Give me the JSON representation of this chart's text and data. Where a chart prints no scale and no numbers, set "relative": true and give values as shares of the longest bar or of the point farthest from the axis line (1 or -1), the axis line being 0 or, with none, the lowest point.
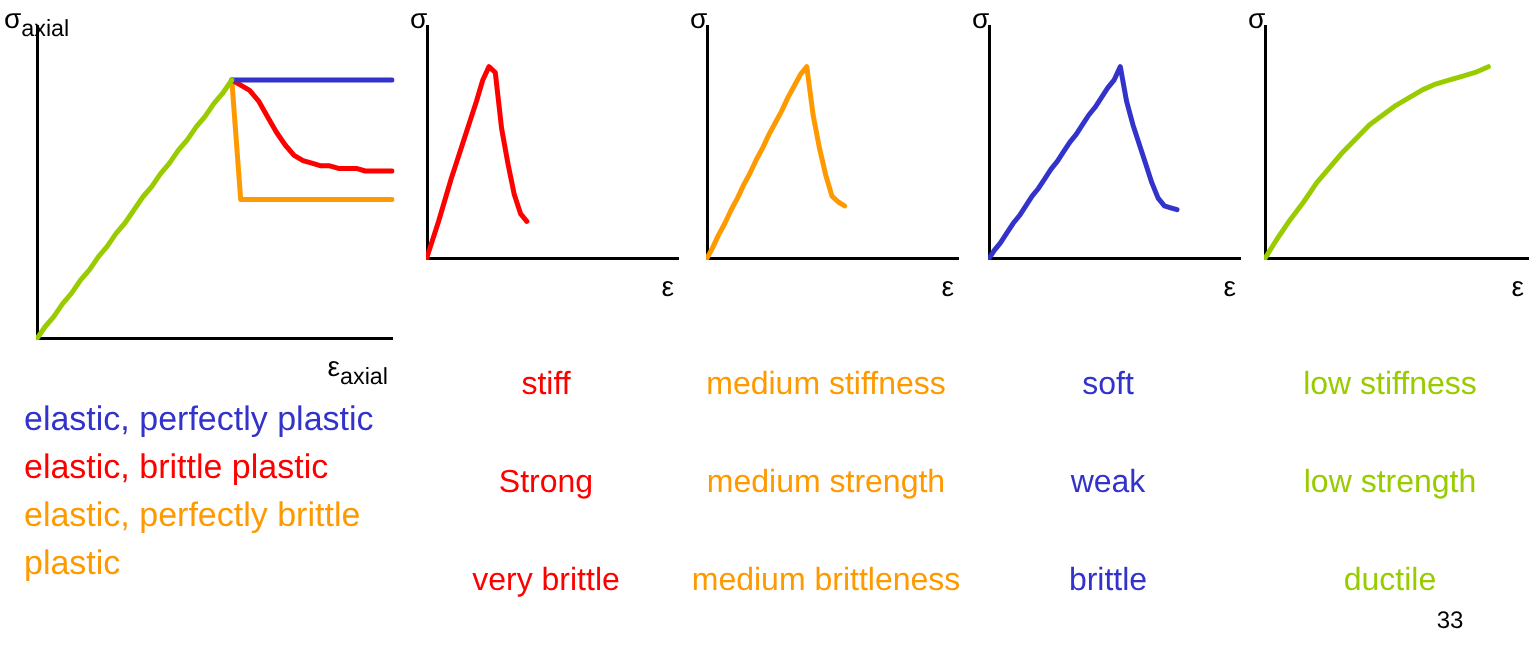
{
  "chart_data": [
    {
      "type": "line",
      "relative": true,
      "xlabel": "ε$_{axial}$",
      "ylabel": "σ$_{axial}$",
      "marker": "none",
      "line_style": "solid",
      "categories": [
        null,
        null,
        null,
        null,
        null,
        null,
        null,
        null,
        null,
        null,
        null,
        null,
        null,
        null,
        null,
        null,
        null,
        null,
        null,
        null,
        null,
        null,
        null,
        null,
        null,
        null,
        null,
        null,
        null,
        null,
        null,
        null,
        null,
        null,
        null,
        null,
        null,
        null,
        null,
        null,
        null
      ],
      "series": [
        {
          "color": "#99cc00",
          "values": [
            0,
            0.05,
            0.09,
            0.14,
            0.18,
            0.23,
            0.27,
            0.32,
            0.36,
            0.41,
            0.45,
            0.5,
            0.55,
            0.59,
            0.64,
            0.68,
            0.73,
            0.77,
            0.82,
            0.86,
            0.91,
            0.95,
            1,
            null,
            null,
            null,
            null,
            null,
            null,
            null,
            null,
            null,
            null,
            null,
            null,
            null,
            null,
            null,
            null,
            null,
            null
          ]
        },
        {
          "name": "elastic, perfectly plastic",
          "color": "#3333cc",
          "values": [
            null,
            null,
            null,
            null,
            null,
            null,
            null,
            null,
            null,
            null,
            null,
            null,
            null,
            null,
            null,
            null,
            null,
            null,
            null,
            null,
            null,
            null,
            1,
            1,
            1,
            1,
            1,
            1,
            1,
            1,
            1,
            1,
            1,
            1,
            1,
            1,
            1,
            1,
            1,
            1,
            1
          ]
        },
        {
          "name": "elastic, brittle plastic",
          "color": "#ff0000",
          "values": [
            null,
            null,
            null,
            null,
            null,
            null,
            null,
            null,
            null,
            null,
            null,
            null,
            null,
            null,
            null,
            null,
            null,
            null,
            null,
            null,
            null,
            null,
            1,
            0.98,
            0.96,
            0.92,
            0.86,
            0.8,
            0.75,
            0.71,
            0.69,
            0.68,
            0.67,
            0.67,
            0.66,
            0.66,
            0.66,
            0.65,
            0.65,
            0.65,
            0.65
          ]
        },
        {
          "name": "elastic, perfectly brittle plastic",
          "color": "#ff9900",
          "values": [
            null,
            null,
            null,
            null,
            null,
            null,
            null,
            null,
            null,
            null,
            null,
            null,
            null,
            null,
            null,
            null,
            null,
            null,
            null,
            null,
            null,
            null,
            1,
            0.54,
            0.54,
            0.54,
            0.54,
            0.54,
            0.54,
            0.54,
            0.54,
            0.54,
            0.54,
            0.54,
            0.54,
            0.54,
            0.54,
            0.54,
            0.54,
            0.54,
            0.54
          ]
        }
      ]
    },
    {
      "type": "line",
      "relative": true,
      "xlabel": "ε",
      "ylabel": "σ",
      "marker": "none",
      "line_style": "solid",
      "annotations": [
        "stiff",
        "Strong",
        "very brittle"
      ],
      "categories": [
        null,
        null,
        null,
        null,
        null,
        null,
        null,
        null,
        null,
        null,
        null,
        null,
        null,
        null,
        null,
        null,
        null,
        null,
        null,
        null,
        null,
        null,
        null,
        null,
        null,
        null,
        null,
        null,
        null,
        null,
        null,
        null,
        null,
        null,
        null,
        null,
        null,
        null,
        null,
        null,
        null
      ],
      "series": [
        {
          "color": "#ff0000",
          "values": [
            0,
            0.1,
            0.2,
            0.31,
            0.42,
            0.52,
            0.62,
            0.72,
            0.82,
            0.93,
            1,
            0.97,
            0.68,
            0.5,
            0.34,
            0.24,
            0.2,
            null,
            null,
            null,
            null,
            null,
            null,
            null,
            null,
            null,
            null,
            null,
            null,
            null,
            null,
            null,
            null,
            null,
            null,
            null,
            null,
            null,
            null,
            null,
            null
          ]
        }
      ]
    },
    {
      "type": "line",
      "relative": true,
      "xlabel": "ε",
      "ylabel": "σ",
      "marker": "none",
      "line_style": "solid",
      "annotations": [
        "medium stiffness",
        "medium strength",
        "medium brittleness"
      ],
      "categories": [
        null,
        null,
        null,
        null,
        null,
        null,
        null,
        null,
        null,
        null,
        null,
        null,
        null,
        null,
        null,
        null,
        null,
        null,
        null,
        null,
        null,
        null,
        null,
        null,
        null,
        null,
        null,
        null,
        null,
        null,
        null,
        null,
        null,
        null,
        null,
        null,
        null,
        null,
        null,
        null,
        null
      ],
      "series": [
        {
          "color": "#ff9900",
          "values": [
            0,
            0.06,
            0.13,
            0.19,
            0.26,
            0.32,
            0.39,
            0.45,
            0.52,
            0.58,
            0.65,
            0.71,
            0.77,
            0.84,
            0.9,
            0.96,
            1,
            0.75,
            0.58,
            0.44,
            0.33,
            0.3,
            0.28,
            null,
            null,
            null,
            null,
            null,
            null,
            null,
            null,
            null,
            null,
            null,
            null,
            null,
            null,
            null,
            null,
            null,
            null
          ]
        }
      ]
    },
    {
      "type": "line",
      "relative": true,
      "xlabel": "ε",
      "ylabel": "σ",
      "marker": "none",
      "line_style": "solid",
      "annotations": [
        "soft",
        "weak",
        "brittle"
      ],
      "categories": [
        null,
        null,
        null,
        null,
        null,
        null,
        null,
        null,
        null,
        null,
        null,
        null,
        null,
        null,
        null,
        null,
        null,
        null,
        null,
        null,
        null,
        null,
        null,
        null,
        null,
        null,
        null,
        null,
        null,
        null,
        null,
        null,
        null,
        null,
        null,
        null,
        null,
        null,
        null,
        null,
        null
      ],
      "series": [
        {
          "color": "#3333cc",
          "values": [
            0,
            0.05,
            0.09,
            0.14,
            0.19,
            0.23,
            0.28,
            0.33,
            0.37,
            0.42,
            0.47,
            0.51,
            0.56,
            0.61,
            0.65,
            0.7,
            0.75,
            0.79,
            0.84,
            0.89,
            0.93,
            1,
            0.82,
            0.7,
            0.6,
            0.5,
            0.4,
            0.32,
            0.28,
            0.27,
            0.26,
            null,
            null,
            null,
            null,
            null,
            null,
            null,
            null,
            null,
            null
          ]
        }
      ]
    },
    {
      "type": "line",
      "relative": true,
      "xlabel": "ε",
      "ylabel": "σ",
      "marker": "none",
      "line_style": "solid",
      "annotations": [
        "low stiffness",
        "low strength",
        "ductile",
        "33"
      ],
      "categories": [
        null,
        null,
        null,
        null,
        null,
        null,
        null,
        null,
        null,
        null,
        null,
        null,
        null,
        null,
        null,
        null,
        null,
        null,
        null,
        null,
        null
      ],
      "series": [
        {
          "color": "#99cc00",
          "values": [
            0,
            0.11,
            0.21,
            0.3,
            0.4,
            0.48,
            0.56,
            0.63,
            0.7,
            0.75,
            0.8,
            0.84,
            0.88,
            0.91,
            0.93,
            0.95,
            0.97,
            1,
            null,
            null,
            null
          ]
        }
      ]
    }
  ]
}
